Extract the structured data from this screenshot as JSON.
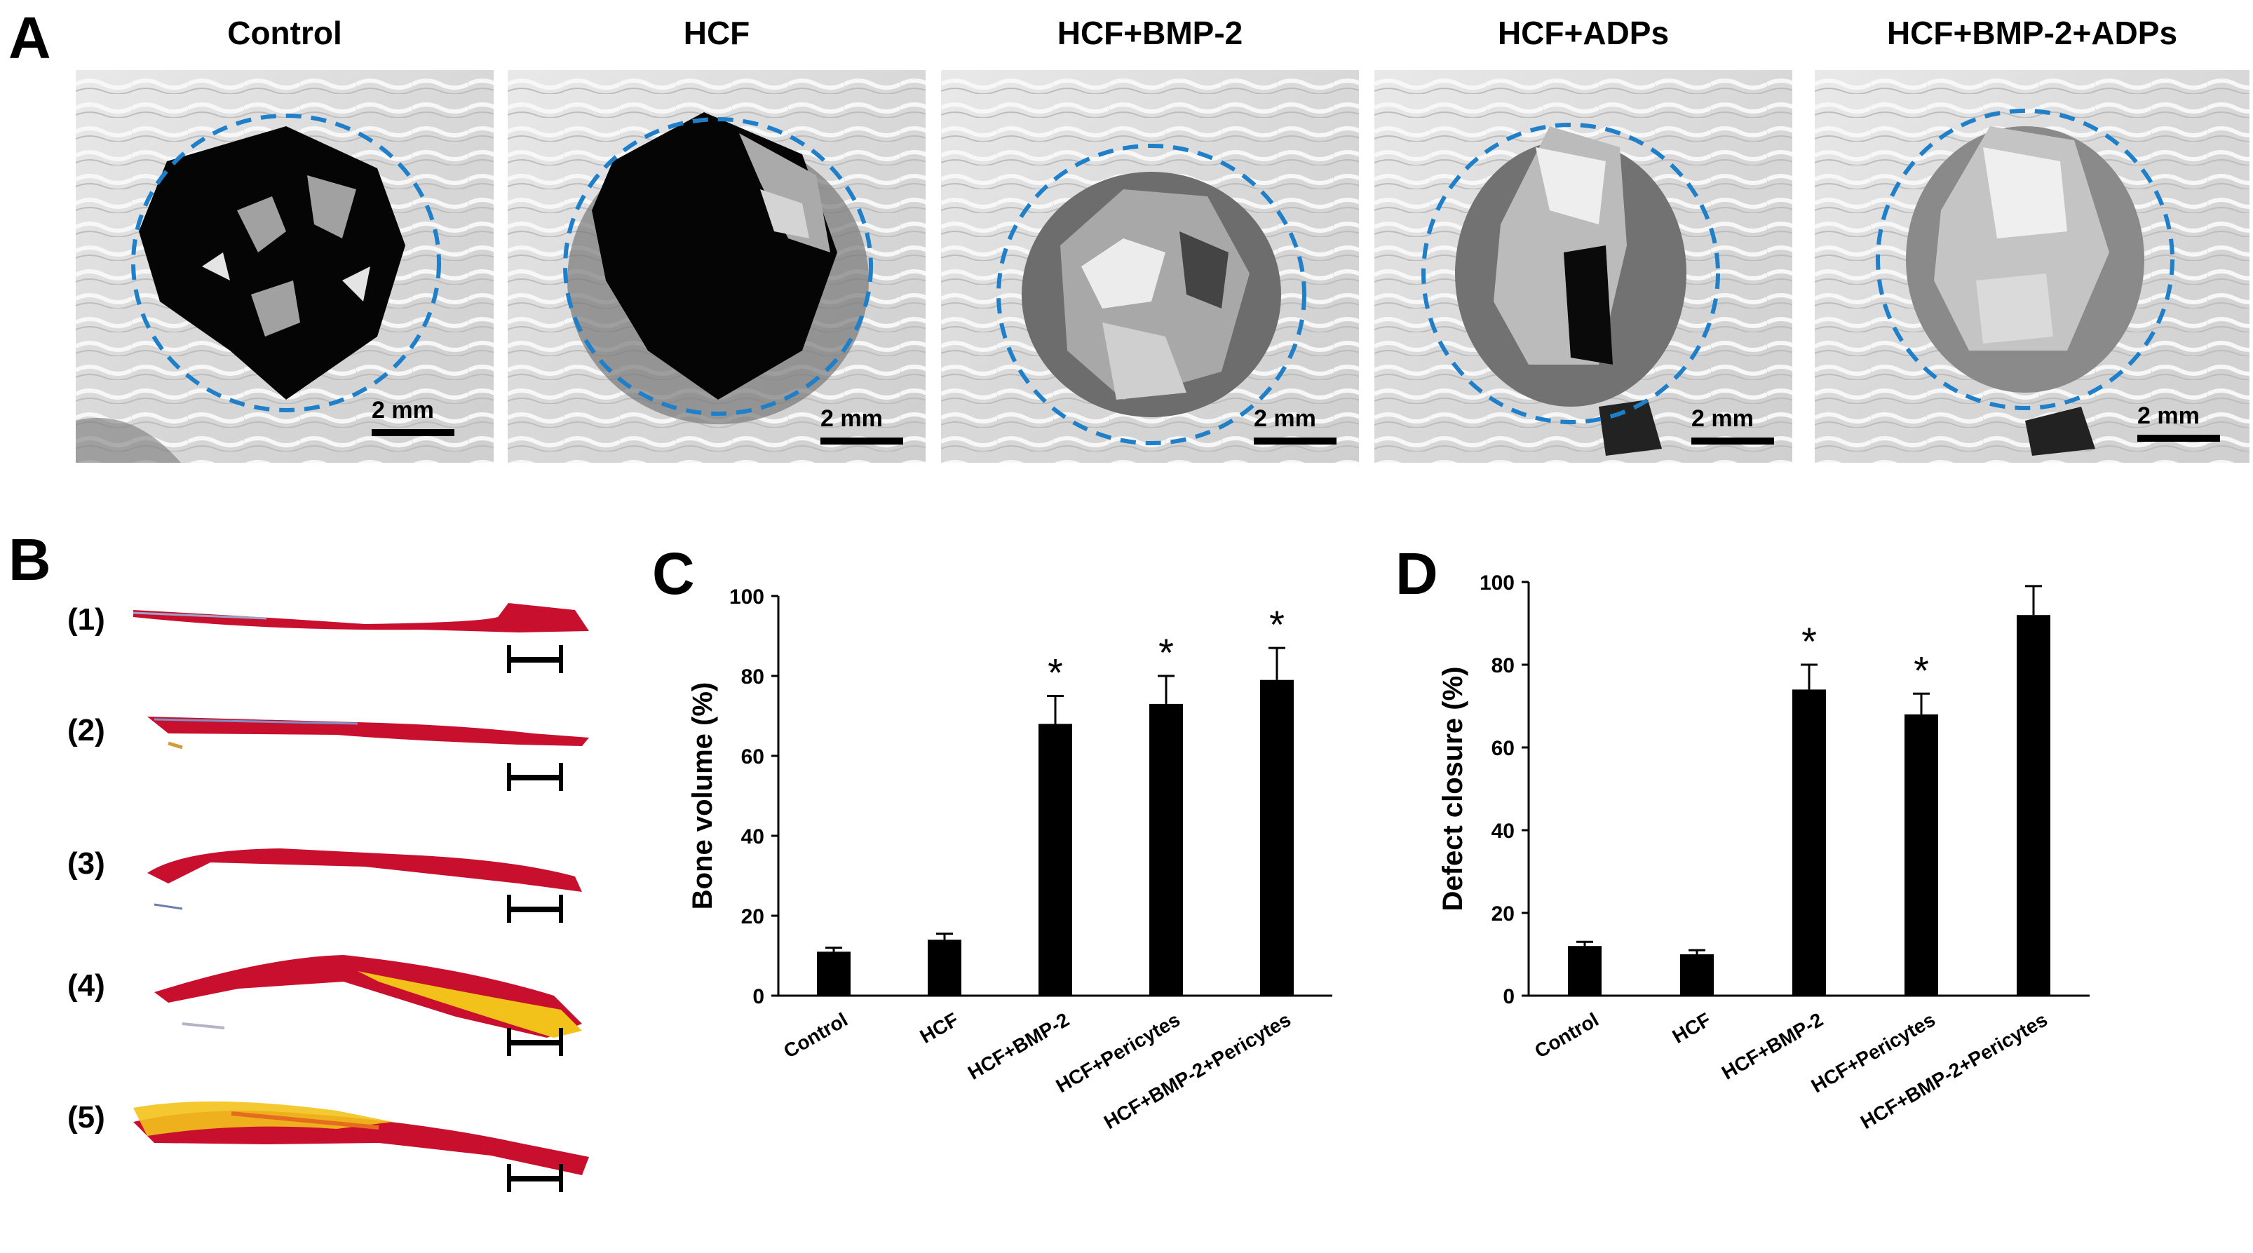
{
  "panel_a": {
    "letter": "A",
    "images": [
      {
        "title": "Control",
        "scale": "2 mm"
      },
      {
        "title": "HCF",
        "scale": "2 mm"
      },
      {
        "title": "HCF+BMP-2",
        "scale": "2 mm"
      },
      {
        "title": "HCF+ADPs",
        "scale": "2 mm"
      },
      {
        "title": "HCF+BMP-2+ADPs",
        "scale": "2 mm"
      }
    ],
    "ring_color": "#1f7fc8"
  },
  "panel_b": {
    "letter": "B",
    "sections": [
      {
        "label": "(1)"
      },
      {
        "label": "(2)"
      },
      {
        "label": "(3)"
      },
      {
        "label": "(4)"
      },
      {
        "label": "(5)"
      }
    ],
    "stain_color": "#c8102e",
    "cartilage_color": "#f2c21b"
  },
  "chart_data": [
    {
      "panel": "C",
      "type": "bar",
      "categories": [
        "Control",
        "HCF",
        "HCF+BMP-2",
        "HCF+Pericytes",
        "HCF+BMP-2+Pericytes"
      ],
      "values": [
        11,
        14,
        68,
        73,
        79
      ],
      "errors": [
        1,
        1.5,
        7,
        7,
        8
      ],
      "significance": [
        "",
        "",
        "*",
        "*",
        "*"
      ],
      "ylabel": "Bone volume (%)",
      "ylim": [
        0,
        100
      ],
      "yticks": [
        0,
        20,
        40,
        60,
        80,
        100
      ]
    },
    {
      "panel": "D",
      "type": "bar",
      "categories": [
        "Control",
        "HCF",
        "HCF+BMP-2",
        "HCF+Pericytes",
        "HCF+BMP-2+Pericytes"
      ],
      "values": [
        12,
        10,
        74,
        68,
        92
      ],
      "errors": [
        1,
        1,
        6,
        5,
        7
      ],
      "significance": [
        "",
        "",
        "*",
        "*",
        "*"
      ],
      "ylabel": "Defect closure (%)",
      "ylim": [
        0,
        100
      ],
      "yticks": [
        0,
        20,
        40,
        60,
        80,
        100
      ]
    }
  ]
}
